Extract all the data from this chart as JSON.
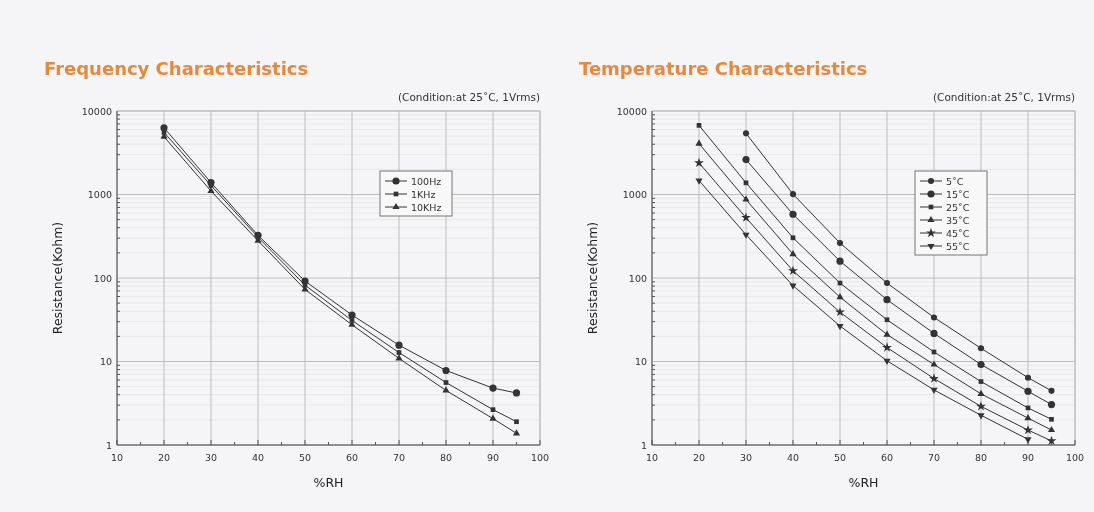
{
  "chart_data": [
    {
      "type": "line",
      "title": "Frequency Characteristics",
      "subtitle": "(Condition:at 25˚C, 1Vrms)",
      "xlabel": "%RH",
      "ylabel": "Resistance(Kohm)",
      "log": "y",
      "grid": true,
      "legend": "top right",
      "x": [
        20,
        30,
        40,
        50,
        60,
        70,
        80,
        90,
        95
      ],
      "xlim": [
        10,
        100
      ],
      "xticks": [
        10,
        20,
        30,
        40,
        50,
        60,
        70,
        80,
        90,
        100
      ],
      "ylim": [
        1,
        10000
      ],
      "yticks": [
        1,
        10,
        100,
        1000,
        10000
      ],
      "series": [
        {
          "name": "100Hz",
          "color": "#333333",
          "marker": "circle",
          "values": [
            6300,
            1390,
            325,
            92,
            36,
            15.7,
            7.8,
            4.8,
            4.2
          ]
        },
        {
          "name": "1KHz",
          "color": "#333333",
          "marker": "square",
          "values": [
            5550,
            1280,
            308,
            82,
            31,
            12.8,
            5.6,
            2.65,
            1.9
          ]
        },
        {
          "name": "10KHz",
          "color": "#333333",
          "marker": "triangle",
          "values": [
            4920,
            1100,
            280,
            73,
            27.5,
            10.9,
            4.5,
            2.07,
            1.38
          ]
        }
      ]
    },
    {
      "type": "line",
      "title": "Temperature Characteristics",
      "subtitle": "(Condition:at 25˚C, 1Vrms)",
      "xlabel": "%RH",
      "ylabel": "Resistance(Kohm)",
      "log": "y",
      "grid": true,
      "legend": "top right",
      "x": [
        20,
        30,
        40,
        50,
        60,
        70,
        80,
        90,
        95
      ],
      "xlim": [
        10,
        100
      ],
      "xticks": [
        10,
        20,
        30,
        40,
        50,
        60,
        70,
        80,
        90,
        100
      ],
      "ylim": [
        1,
        10000
      ],
      "yticks": [
        1,
        10,
        100,
        1000,
        10000
      ],
      "series": [
        {
          "name": "5˚C",
          "color": "#333333",
          "marker": "circle",
          "x": [
            30,
            40,
            50,
            60,
            70,
            80,
            90,
            95
          ],
          "values": [
            5400,
            1010,
            262,
            87,
            33.7,
            14.4,
            6.4,
            4.45
          ]
        },
        {
          "name": "15˚C",
          "color": "#333333",
          "marker": "circle",
          "values": [
            null,
            2620,
            580,
            159,
            55,
            21.7,
            9.2,
            4.4,
            3.05
          ]
        },
        {
          "name": "25˚C",
          "color": "#333333",
          "marker": "square",
          "values": [
            6730,
            1380,
            303,
            87,
            31.6,
            13,
            5.75,
            2.78,
            2.03
          ]
        },
        {
          "name": "35˚C",
          "color": "#333333",
          "marker": "triangle",
          "values": [
            4060,
            870,
            193,
            59,
            21,
            9.2,
            4.1,
            2.1,
            1.51
          ]
        },
        {
          "name": "45˚C",
          "color": "#333333",
          "marker": "star",
          "values": [
            2390,
            528,
            122,
            39,
            14.7,
            6.25,
            2.9,
            1.51,
            1.12
          ]
        },
        {
          "name": "55˚C",
          "color": "#333333",
          "marker": "triangle-down",
          "values": [
            1470,
            330,
            81,
            26.6,
            10.2,
            4.57,
            2.27,
            1.17,
            null
          ]
        }
      ]
    }
  ]
}
